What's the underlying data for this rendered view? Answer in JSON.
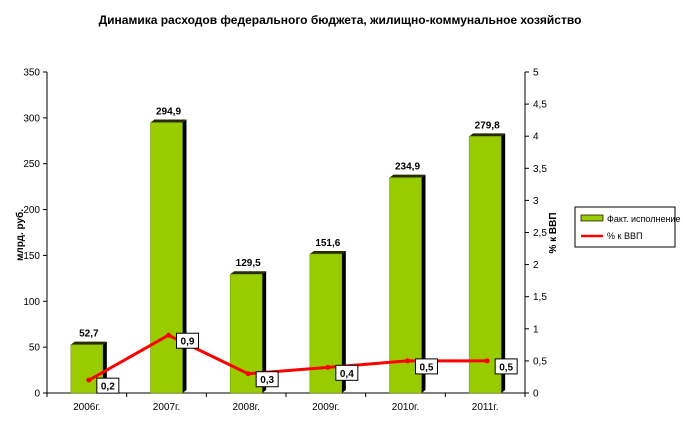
{
  "chart_data": {
    "type": "bar",
    "title": "Динамика расходов федерального бюджета, жилищно-коммунальное хозяйство",
    "categories": [
      "2006г.",
      "2007г.",
      "2008г.",
      "2009г.",
      "2010г.",
      "2011г."
    ],
    "ylabel": "млрд. руб.",
    "ylabel_right": "% к ВВП",
    "ylim": [
      0,
      350
    ],
    "yticks": [
      "0",
      "50",
      "100",
      "150",
      "200",
      "250",
      "300",
      "350"
    ],
    "ylim_right": [
      0,
      5
    ],
    "yticks_right": [
      "0",
      "0,5",
      "1",
      "1,5",
      "2",
      "2,5",
      "3",
      "3,5",
      "4",
      "4,5",
      "5"
    ],
    "legend_position": "right",
    "series": [
      {
        "name": "Факт. исполнение",
        "type": "bar",
        "axis": "left",
        "color": "#99cc00",
        "values": [
          52.7,
          294.9,
          129.5,
          151.6,
          234.9,
          279.8
        ],
        "labels": [
          "52,7",
          "294,9",
          "129,5",
          "151,6",
          "234,9",
          "279,8"
        ]
      },
      {
        "name": "% к ВВП",
        "type": "line",
        "axis": "right",
        "color": "#ff0000",
        "values": [
          0.2,
          0.9,
          0.3,
          0.4,
          0.5,
          0.5
        ],
        "labels": [
          "0,2",
          "0,9",
          "0,3",
          "0,4",
          "0,5",
          "0,5"
        ]
      }
    ]
  }
}
